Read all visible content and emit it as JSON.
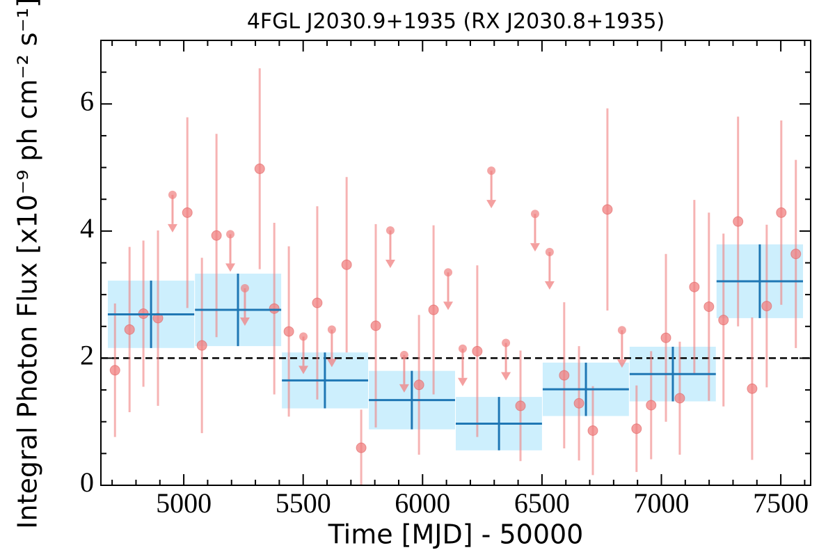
{
  "chart_data": {
    "type": "lightcurve",
    "title": "4FGL J2030.9+1935 (RX J2030.8+1935)",
    "x_label": "Time [MJD] - 50000",
    "y_label": "Integral Photon Flux [x10⁻⁹ ph cm⁻² s⁻¹]",
    "xlim": [
      4653,
      7625
    ],
    "ylim": [
      0,
      7
    ],
    "xticks": [
      5000,
      5500,
      6000,
      6500,
      7000,
      7500
    ],
    "yticks": [
      0,
      2,
      4,
      6
    ],
    "xminorticks": [
      4700,
      4800,
      4900,
      5100,
      5200,
      5300,
      5400,
      5600,
      5700,
      5800,
      5900,
      6100,
      6200,
      6300,
      6400,
      6600,
      6700,
      6800,
      6900,
      7100,
      7200,
      7300,
      7400,
      7600
    ],
    "yminorticks": [
      0.5,
      1,
      1.5,
      2.5,
      3,
      3.5,
      4.5,
      5,
      5.5,
      6.5
    ],
    "reference_line": 2,
    "detections": {
      "color": "#f08080",
      "x": [
        4712,
        4773,
        4831,
        4892,
        5015,
        5076,
        5137,
        5318,
        5379,
        5440,
        5559,
        5682,
        5743,
        5804,
        5985,
        6046,
        6229,
        6410,
        6593,
        6655,
        6713,
        6774,
        6896,
        6957,
        7019,
        7077,
        7138,
        7199,
        7260,
        7321,
        7380,
        7441,
        7502,
        7563
      ],
      "values": [
        1.81,
        2.45,
        2.7,
        2.63,
        4.29,
        2.2,
        3.93,
        4.98,
        2.78,
        2.42,
        2.87,
        3.47,
        0.59,
        2.51,
        1.58,
        2.76,
        2.11,
        1.25,
        1.73,
        1.29,
        0.86,
        4.34,
        0.89,
        1.26,
        2.32,
        1.37,
        3.12,
        2.81,
        2.6,
        4.15,
        1.52,
        2.82,
        4.29,
        3.64
      ],
      "errors": [
        1.05,
        1.3,
        1.15,
        1.38,
        1.5,
        1.38,
        1.6,
        1.58,
        1.35,
        1.34,
        1.52,
        1.38,
        0.6,
        1.6,
        1.1,
        1.33,
        1.35,
        0.87,
        1.15,
        0.9,
        0.7,
        1.59,
        0.68,
        0.85,
        1.32,
        0.89,
        1.37,
        1.48,
        1.36,
        1.65,
        1.12,
        1.28,
        1.45,
        1.48
      ]
    },
    "upper_limits": {
      "color": "#f08080",
      "x": [
        4953,
        5195,
        5256,
        5501,
        5620,
        5865,
        5923,
        6107,
        6168,
        6288,
        6349,
        6471,
        6532,
        6835
      ],
      "values": [
        4.57,
        3.95,
        3.1,
        2.34,
        2.45,
        4.01,
        2.05,
        3.35,
        2.15,
        4.95,
        2.24,
        4.27,
        3.67,
        2.44
      ]
    },
    "bins": {
      "color": "#1f77b4",
      "fill": "#cdeffd",
      "x_start": [
        4682,
        5047,
        5411,
        5775,
        6139,
        6503,
        6867,
        7231
      ],
      "x_end": [
        5044,
        5408,
        5772,
        6136,
        6500,
        6864,
        7228,
        7593
      ],
      "x": [
        4863,
        5227,
        5591,
        5955,
        6320,
        6684,
        7048,
        7412
      ],
      "values": [
        2.69,
        2.76,
        1.65,
        1.34,
        0.97,
        1.51,
        1.75,
        3.21
      ],
      "errors": [
        0.53,
        0.57,
        0.44,
        0.46,
        0.42,
        0.42,
        0.43,
        0.58
      ]
    }
  }
}
